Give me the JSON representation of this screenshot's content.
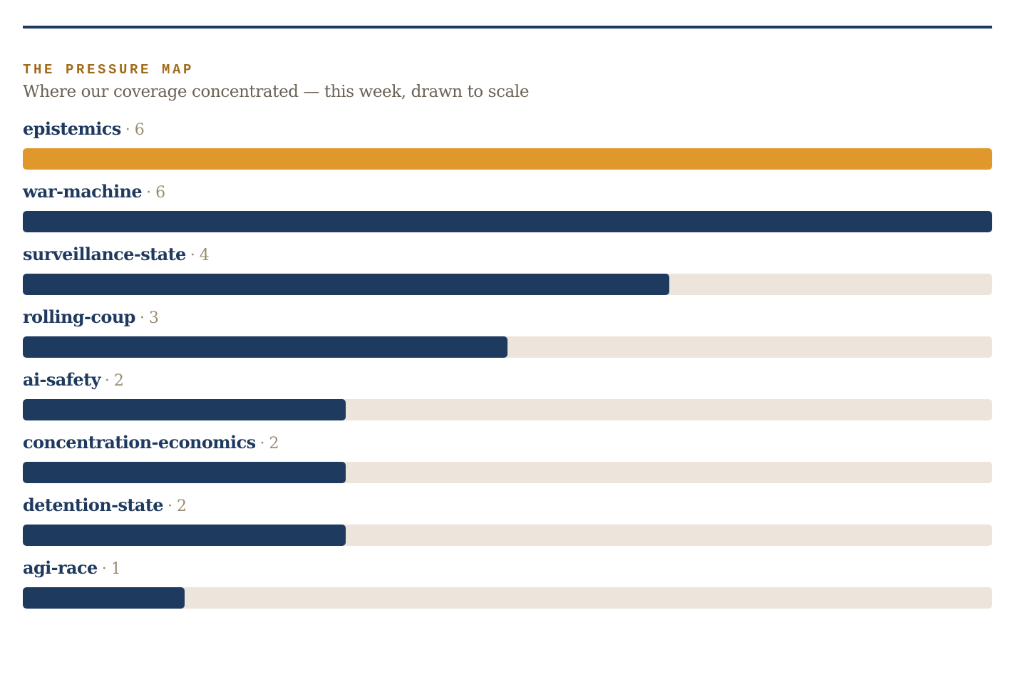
{
  "header": {
    "kicker": "THE PRESSURE MAP",
    "subtitle": "Where our coverage concentrated — this week, drawn to scale"
  },
  "colors": {
    "rule": "#1f3a5f",
    "kicker": "#a06c1a",
    "bar": "#1f3a5f",
    "highlight_bar": "#e0982c",
    "track": "#ede5db",
    "count": "#9a8c72"
  },
  "chart_data": {
    "type": "bar",
    "orientation": "horizontal",
    "title": "THE PRESSURE MAP",
    "subtitle": "Where our coverage concentrated — this week, drawn to scale",
    "categories": [
      "epistemics",
      "war-machine",
      "surveillance-state",
      "rolling-coup",
      "ai-safety",
      "concentration-economics",
      "detention-state",
      "agi-race"
    ],
    "values": [
      6,
      6,
      4,
      3,
      2,
      2,
      2,
      1
    ],
    "highlighted": [
      "epistemics"
    ],
    "xlim": [
      0,
      6
    ],
    "count_separator": "·",
    "grid": false,
    "legend": "none"
  }
}
